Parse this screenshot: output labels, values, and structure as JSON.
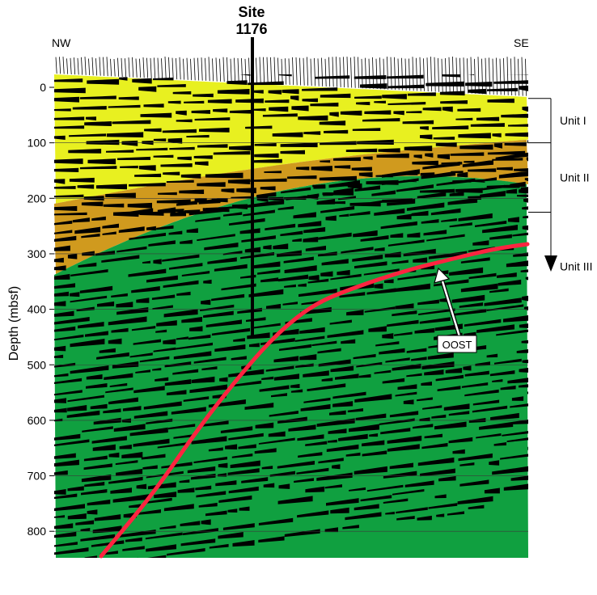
{
  "site": {
    "line1": "Site",
    "line2": "1176"
  },
  "directions": {
    "left": "NW",
    "right": "SE"
  },
  "depth_axis": {
    "label": "Depth (mbsf)",
    "ticks": [
      0,
      100,
      200,
      300,
      400,
      500,
      600,
      700,
      800
    ],
    "range": [
      0,
      860
    ]
  },
  "units": [
    {
      "name": "Unit I",
      "top": 20,
      "bottom": 100
    },
    {
      "name": "Unit II",
      "top": 100,
      "bottom": 225
    },
    {
      "name": "Unit III",
      "top": 225,
      "bottom": 300
    }
  ],
  "annotation": {
    "label": "OOST"
  },
  "colors": {
    "unit1": "#e8f020",
    "unit2": "#d09a1e",
    "unit3": "#10a040",
    "oost_line": "#ff2440",
    "wiggle": "#000000"
  }
}
